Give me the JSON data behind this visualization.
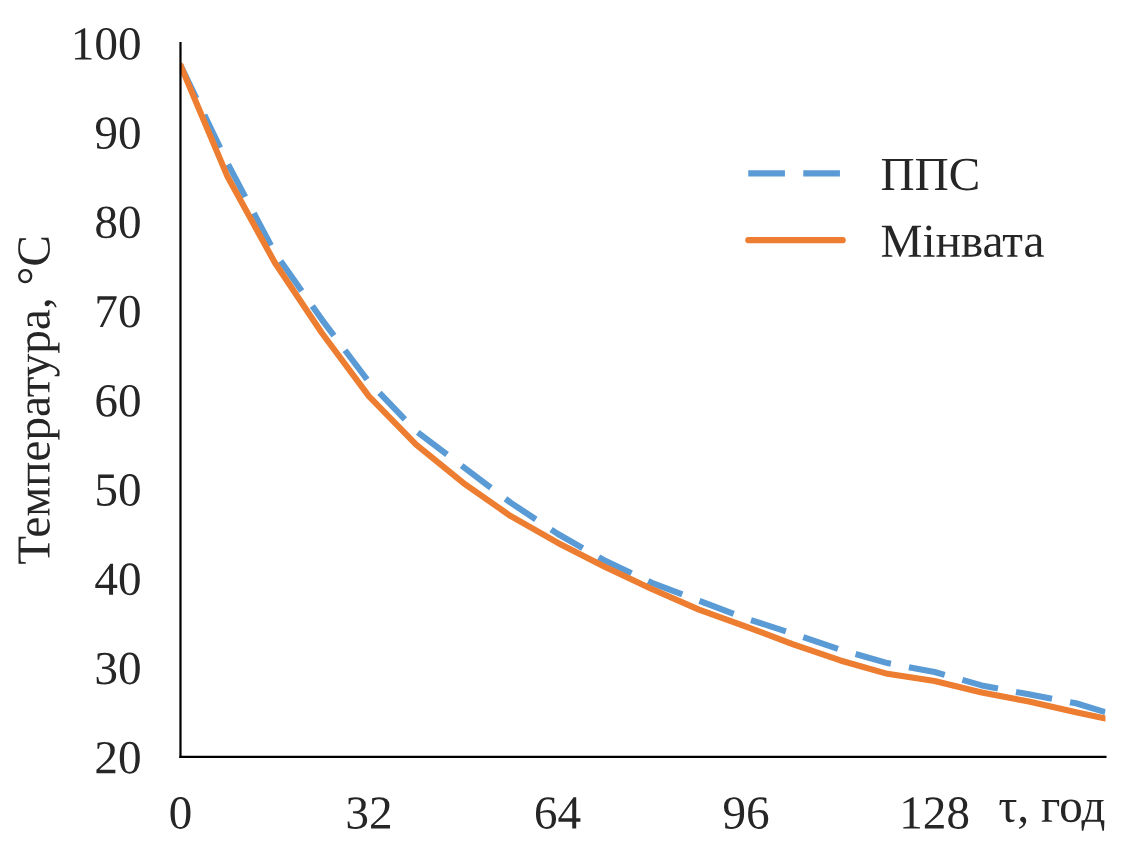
{
  "chart_data": {
    "type": "line",
    "xlabel": "τ, год",
    "ylabel": "Температура, °С",
    "x": [
      0,
      8,
      16,
      24,
      32,
      40,
      48,
      56,
      64,
      72,
      80,
      88,
      96,
      104,
      112,
      120,
      128,
      136,
      144,
      152,
      157
    ],
    "series": [
      {
        "name": "ППС",
        "color": "#5b9bd5",
        "line_style": "dashed",
        "values": [
          97.5,
          86.5,
          76.5,
          69,
          62,
          56.5,
          52.5,
          48.5,
          45,
          42,
          39.5,
          37.5,
          35.5,
          33.8,
          32,
          30.5,
          29.5,
          28,
          27,
          26,
          25
        ]
      },
      {
        "name": "Мінвата",
        "color": "#ed7d31",
        "line_style": "solid",
        "values": [
          97.5,
          85,
          75.4,
          67.5,
          60.4,
          55,
          50.7,
          47,
          44,
          41.3,
          38.8,
          36.5,
          34.6,
          32.6,
          30.8,
          29.3,
          28.5,
          27.2,
          26.2,
          25,
          24.3
        ]
      }
    ],
    "xlim": [
      0,
      157
    ],
    "ylim": [
      20,
      100
    ],
    "xticks": [
      0,
      32,
      64,
      96,
      128
    ],
    "yticks": [
      20,
      30,
      40,
      50,
      60,
      70,
      80,
      90,
      100
    ],
    "grid": false,
    "legend": "top right",
    "marker": "none"
  }
}
